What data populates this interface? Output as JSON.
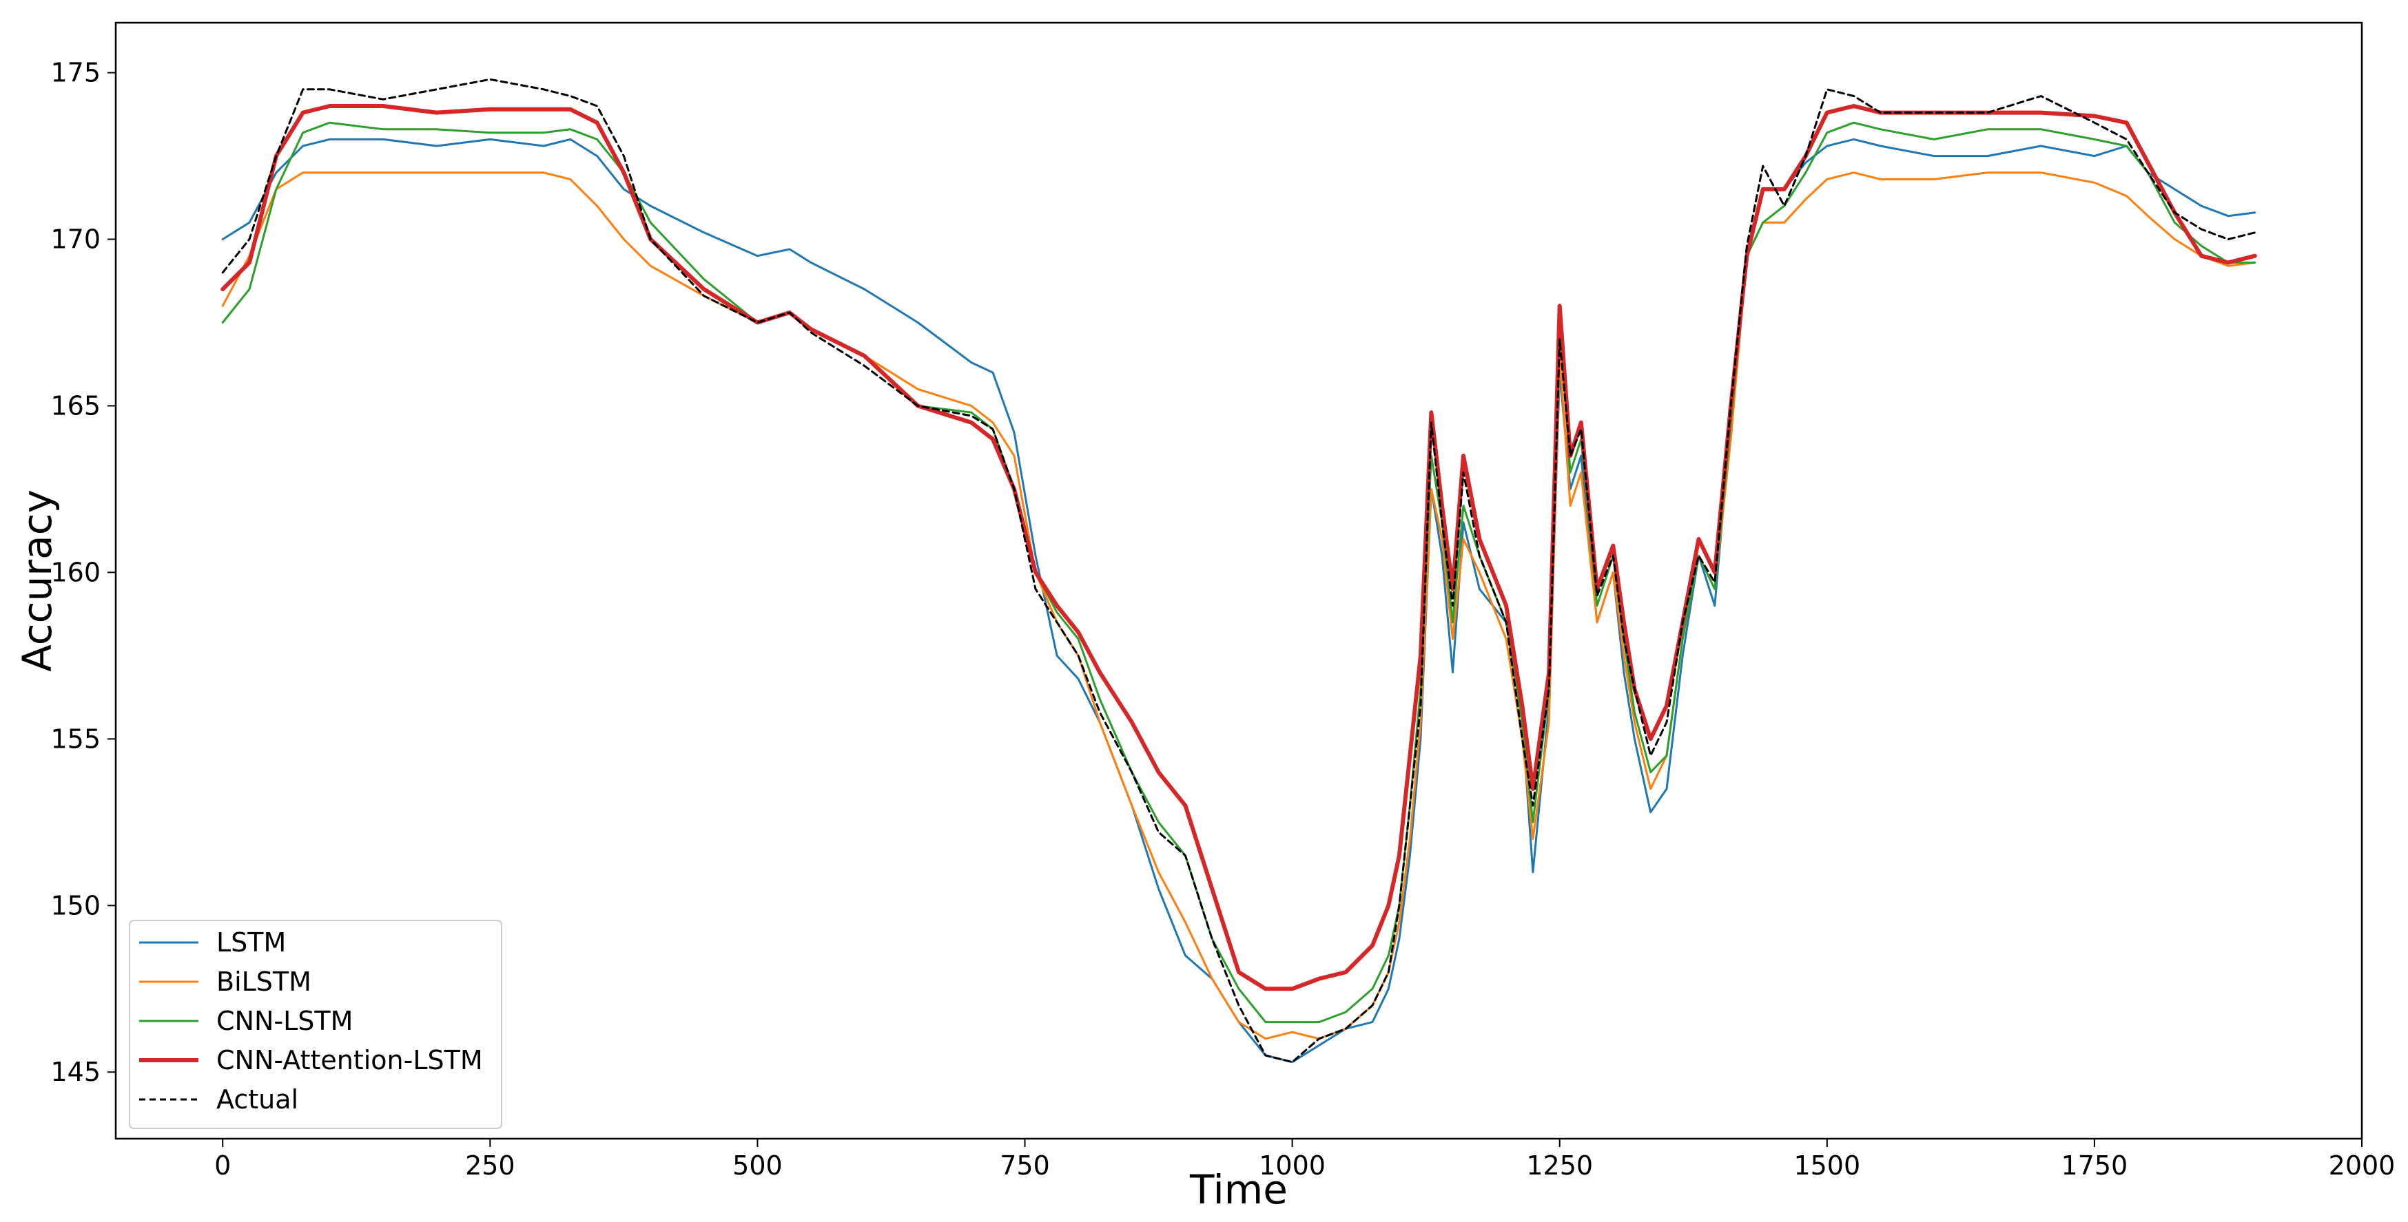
{
  "chart_data": {
    "type": "line",
    "title": "",
    "xlabel": "Time",
    "ylabel": "Accuracy",
    "xlim": [
      -100,
      2000
    ],
    "ylim": [
      143,
      176.5
    ],
    "xticks": [
      0,
      250,
      500,
      750,
      1000,
      1250,
      1500,
      1750,
      2000
    ],
    "yticks": [
      145,
      150,
      155,
      160,
      165,
      170,
      175
    ],
    "xtick_labels": [
      "0",
      "250",
      "500",
      "750",
      "1000",
      "1250",
      "1500",
      "1750",
      "2000"
    ],
    "ytick_labels": [
      "145",
      "150",
      "155",
      "160",
      "165",
      "170",
      "175"
    ],
    "grid": false,
    "legend_position": "lower-left",
    "x": [
      0,
      25,
      50,
      75,
      100,
      150,
      200,
      250,
      300,
      325,
      350,
      375,
      400,
      450,
      500,
      530,
      550,
      600,
      650,
      700,
      720,
      740,
      760,
      780,
      800,
      820,
      850,
      875,
      900,
      925,
      950,
      975,
      1000,
      1025,
      1050,
      1075,
      1090,
      1100,
      1110,
      1120,
      1130,
      1140,
      1150,
      1160,
      1175,
      1200,
      1215,
      1225,
      1240,
      1250,
      1260,
      1270,
      1285,
      1300,
      1310,
      1320,
      1335,
      1350,
      1365,
      1380,
      1395,
      1410,
      1425,
      1440,
      1460,
      1480,
      1500,
      1525,
      1550,
      1600,
      1650,
      1700,
      1750,
      1780,
      1800,
      1825,
      1850,
      1875,
      1900
    ],
    "series": [
      {
        "name": "LSTM",
        "color": "#1f77b4",
        "values": [
          170.0,
          170.5,
          172.0,
          172.8,
          173.0,
          173.0,
          172.8,
          173.0,
          172.8,
          173.0,
          172.5,
          171.5,
          171.0,
          170.2,
          169.5,
          169.7,
          169.3,
          168.5,
          167.5,
          166.3,
          166.0,
          164.2,
          160.5,
          157.5,
          156.8,
          155.5,
          153.0,
          150.5,
          148.5,
          147.8,
          146.5,
          145.5,
          145.3,
          145.8,
          146.3,
          146.5,
          147.5,
          149.0,
          151.5,
          155.0,
          162.5,
          160.5,
          157.0,
          161.5,
          159.5,
          158.5,
          155.5,
          151.0,
          156.0,
          166.0,
          162.5,
          163.5,
          158.5,
          160.0,
          157.0,
          155.0,
          152.8,
          153.5,
          157.5,
          160.5,
          159.0,
          164.5,
          169.5,
          171.5,
          171.5,
          172.3,
          172.8,
          173.0,
          172.8,
          172.5,
          172.5,
          172.8,
          172.5,
          172.8,
          172.0,
          171.5,
          171.0,
          170.7,
          170.8
        ]
      },
      {
        "name": "BiLSTM",
        "color": "#ff7f0e",
        "values": [
          168.0,
          169.5,
          171.5,
          172.0,
          172.0,
          172.0,
          172.0,
          172.0,
          172.0,
          171.8,
          171.0,
          170.0,
          169.2,
          168.3,
          167.5,
          167.8,
          167.3,
          166.5,
          165.5,
          165.0,
          164.5,
          163.5,
          160.0,
          158.5,
          157.5,
          155.5,
          153.0,
          151.0,
          149.5,
          147.8,
          146.5,
          146.0,
          146.2,
          146.0,
          146.3,
          147.0,
          148.0,
          149.5,
          152.0,
          155.5,
          162.5,
          161.0,
          158.0,
          161.0,
          160.0,
          158.0,
          155.0,
          152.0,
          155.5,
          166.5,
          162.0,
          163.0,
          158.5,
          160.0,
          157.5,
          155.5,
          153.5,
          154.5,
          158.0,
          160.5,
          159.5,
          164.0,
          169.5,
          170.5,
          170.5,
          171.2,
          171.8,
          172.0,
          171.8,
          171.8,
          172.0,
          172.0,
          171.7,
          171.3,
          170.7,
          170.0,
          169.5,
          169.2,
          169.3
        ]
      },
      {
        "name": "CNN-LSTM",
        "color": "#2ca02c",
        "values": [
          167.5,
          168.5,
          171.5,
          173.2,
          173.5,
          173.3,
          173.3,
          173.2,
          173.2,
          173.3,
          173.0,
          172.0,
          170.5,
          168.8,
          167.5,
          167.8,
          167.3,
          166.5,
          165.0,
          164.8,
          164.3,
          162.5,
          160.0,
          158.8,
          158.0,
          156.2,
          154.0,
          152.5,
          151.5,
          149.0,
          147.5,
          146.5,
          146.5,
          146.5,
          146.8,
          147.5,
          148.5,
          150.0,
          153.0,
          156.5,
          163.5,
          161.5,
          158.5,
          162.0,
          160.5,
          158.5,
          155.5,
          152.5,
          156.5,
          167.5,
          163.0,
          164.0,
          159.0,
          160.5,
          158.0,
          155.8,
          154.0,
          154.5,
          158.0,
          160.5,
          159.5,
          164.5,
          169.5,
          170.5,
          171.0,
          172.0,
          173.2,
          173.5,
          173.3,
          173.0,
          173.3,
          173.3,
          173.0,
          172.8,
          172.0,
          170.5,
          169.8,
          169.3,
          169.3
        ]
      },
      {
        "name": "CNN-Attention-LSTM",
        "color": "#d62728",
        "values": [
          168.5,
          169.3,
          172.5,
          173.8,
          174.0,
          174.0,
          173.8,
          173.9,
          173.9,
          173.9,
          173.5,
          172.0,
          170.0,
          168.5,
          167.5,
          167.8,
          167.3,
          166.5,
          165.0,
          164.5,
          164.0,
          162.5,
          160.0,
          159.0,
          158.2,
          157.0,
          155.5,
          154.0,
          153.0,
          150.5,
          148.0,
          147.5,
          147.5,
          147.8,
          148.0,
          148.8,
          150.0,
          151.5,
          154.5,
          157.5,
          164.8,
          162.0,
          159.5,
          163.5,
          161.0,
          159.0,
          156.0,
          153.5,
          157.0,
          168.0,
          163.5,
          164.5,
          159.5,
          160.8,
          158.5,
          156.5,
          155.0,
          156.0,
          158.5,
          161.0,
          160.0,
          165.0,
          169.5,
          171.5,
          171.5,
          172.5,
          173.8,
          174.0,
          173.8,
          173.8,
          173.8,
          173.8,
          173.7,
          173.5,
          172.3,
          170.8,
          169.5,
          169.3,
          169.5
        ]
      },
      {
        "name": "Actual",
        "color": "#000000",
        "values": [
          169.0,
          170.0,
          172.5,
          174.5,
          174.5,
          174.2,
          174.5,
          174.8,
          174.5,
          174.3,
          174.0,
          172.5,
          170.0,
          168.3,
          167.5,
          167.8,
          167.2,
          166.2,
          165.0,
          164.7,
          164.3,
          162.5,
          159.5,
          158.5,
          157.5,
          155.8,
          154.0,
          152.2,
          151.5,
          149.0,
          147.0,
          145.5,
          145.3,
          146.0,
          146.3,
          147.0,
          148.0,
          150.0,
          153.0,
          156.0,
          164.5,
          161.5,
          159.0,
          163.0,
          160.5,
          158.5,
          155.0,
          153.0,
          156.5,
          167.0,
          163.5,
          164.3,
          159.3,
          160.5,
          158.0,
          156.5,
          154.5,
          155.5,
          158.5,
          160.5,
          159.7,
          165.0,
          169.8,
          172.2,
          171.0,
          172.5,
          174.5,
          174.3,
          173.8,
          173.8,
          173.8,
          174.3,
          173.5,
          173.0,
          172.0,
          170.8,
          170.3,
          170.0,
          170.2
        ]
      }
    ]
  }
}
